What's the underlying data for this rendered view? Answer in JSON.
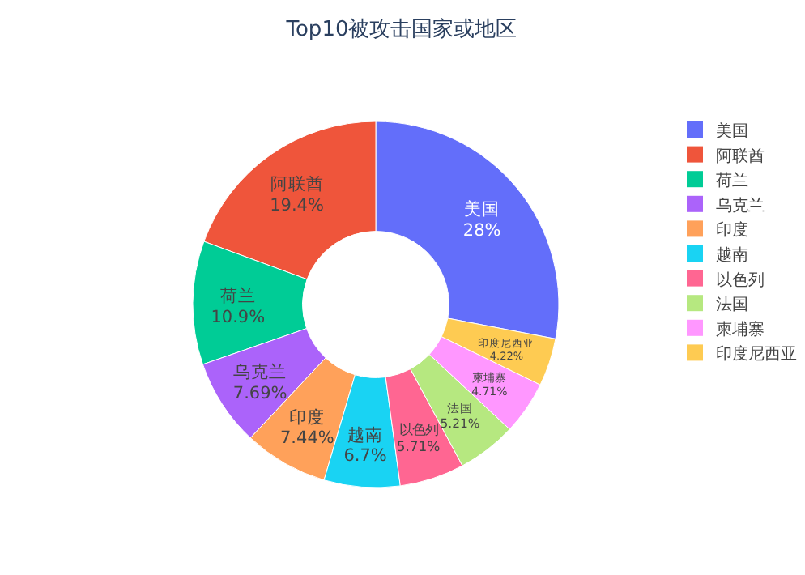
{
  "chart_data": {
    "type": "donut",
    "title": "Top10被攻击国家或地区",
    "categories": [
      "美国",
      "阿联酋",
      "荷兰",
      "乌克兰",
      "印度",
      "越南",
      "以色列",
      "法国",
      "柬埔寨",
      "印度尼西亚"
    ],
    "values": [
      28,
      19.4,
      10.9,
      7.69,
      7.44,
      6.7,
      5.71,
      5.21,
      4.71,
      4.22
    ],
    "value_labels": [
      "28%",
      "19.4%",
      "10.9%",
      "7.69%",
      "7.44%",
      "6.7%",
      "5.71%",
      "5.21%",
      "4.71%",
      "4.22%"
    ],
    "colors": [
      "#636efa",
      "#ef553b",
      "#00cc96",
      "#ab63fa",
      "#ffa15a",
      "#19d3f3",
      "#ff6692",
      "#b6e880",
      "#ff97ff",
      "#fecb52"
    ],
    "legend": "right"
  }
}
